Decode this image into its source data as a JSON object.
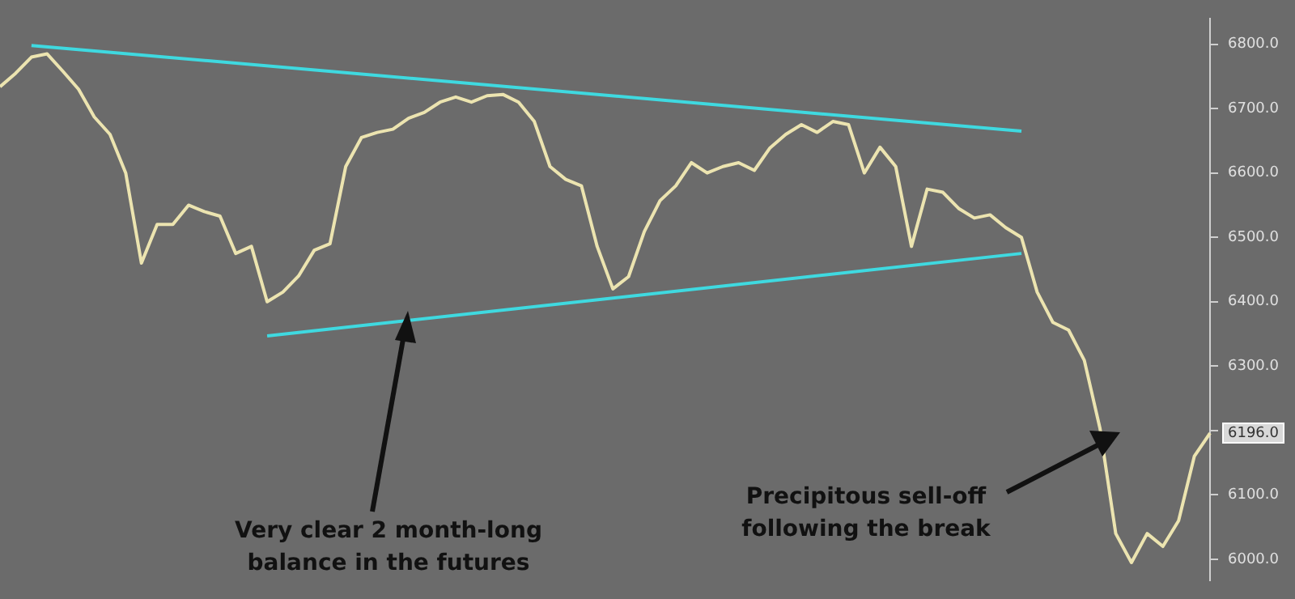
{
  "chart_data": {
    "type": "line",
    "categories": [
      null,
      null,
      null,
      null,
      null,
      null,
      null,
      null,
      null,
      null,
      null,
      null,
      null,
      null,
      null,
      null,
      null,
      null,
      null,
      null,
      null,
      null,
      null,
      null,
      null,
      null,
      null,
      null,
      null,
      null,
      null,
      null,
      null,
      null,
      null,
      null,
      null,
      null,
      null,
      null,
      null,
      null,
      null,
      null,
      null,
      null,
      null,
      null,
      null,
      null,
      null,
      null,
      null,
      null,
      null,
      null,
      null,
      null,
      null,
      null,
      null,
      null,
      null,
      null,
      null,
      null,
      null,
      null,
      null,
      null,
      null,
      null,
      null,
      null,
      null,
      null,
      null,
      null
    ],
    "series": [
      {
        "color": "#ece4b0",
        "values": [
          6734,
          6755,
          6780,
          6785,
          6758,
          6730,
          6687,
          6660,
          6600,
          6460,
          6520,
          6520,
          6550,
          6540,
          6533,
          6475,
          6486,
          6400,
          6415,
          6440,
          6480,
          6490,
          6610,
          6655,
          6663,
          6668,
          6685,
          6694,
          6710,
          6718,
          6710,
          6720,
          6722,
          6710,
          6680,
          6610,
          6590,
          6580,
          6486,
          6420,
          6439,
          6509,
          6557,
          6580,
          6616,
          6600,
          6610,
          6616,
          6604,
          6639,
          6660,
          6675,
          6663,
          6680,
          6675,
          6600,
          6640,
          6610,
          6486,
          6575,
          6570,
          6545,
          6530,
          6535,
          6515,
          6500,
          6415,
          6368,
          6356,
          6309,
          6203,
          6040,
          5995,
          6040,
          6020,
          6060,
          6160,
          6196
        ]
      },
      {
        "color": "#3fd9e0",
        "values": [
          null,
          null,
          6798,
          null,
          null,
          null,
          null,
          null,
          null,
          null,
          null,
          null,
          null,
          null,
          null,
          null,
          null,
          null,
          null,
          null,
          null,
          null,
          null,
          null,
          null,
          null,
          null,
          null,
          null,
          null,
          null,
          null,
          null,
          null,
          null,
          null,
          null,
          null,
          null,
          null,
          null,
          null,
          null,
          null,
          null,
          null,
          null,
          null,
          null,
          null,
          null,
          null,
          null,
          null,
          null,
          null,
          null,
          null,
          null,
          null,
          null,
          null,
          null,
          null,
          null,
          6665,
          null,
          null,
          null,
          null,
          null,
          null,
          null,
          null,
          null,
          null,
          null,
          null
        ]
      },
      {
        "color": "#3fd9e0",
        "values": [
          null,
          null,
          null,
          null,
          null,
          null,
          null,
          null,
          null,
          null,
          null,
          null,
          null,
          null,
          null,
          null,
          null,
          6347,
          null,
          null,
          null,
          null,
          null,
          null,
          null,
          null,
          null,
          null,
          null,
          null,
          null,
          null,
          null,
          null,
          null,
          null,
          null,
          null,
          null,
          null,
          null,
          null,
          null,
          null,
          null,
          null,
          null,
          null,
          null,
          null,
          null,
          null,
          null,
          null,
          null,
          null,
          null,
          null,
          null,
          null,
          null,
          null,
          null,
          null,
          null,
          6475,
          null,
          null,
          null,
          null,
          null,
          null,
          null,
          null,
          null,
          null,
          null,
          null
        ]
      }
    ],
    "ylim": [
      5967,
      6840
    ],
    "yticks": [
      {
        "value": 6000,
        "label": "6000.0"
      },
      {
        "value": 6100,
        "label": "6100.0"
      },
      {
        "value": 6200,
        "label": null
      },
      {
        "value": 6300,
        "label": "6300.0"
      },
      {
        "value": 6400,
        "label": "6400.0"
      },
      {
        "value": 6500,
        "label": "6500.0"
      },
      {
        "value": 6600,
        "label": "6600.0"
      },
      {
        "value": 6700,
        "label": "6700.0"
      },
      {
        "value": 6800,
        "label": "6800.0"
      }
    ],
    "annotations": [
      "Very clear 2 month-long balance in the futures",
      "Precipitous sell-off following the break",
      "6196.0"
    ],
    "tick_labels": "y",
    "grid": false,
    "legend": false,
    "marker": "none"
  }
}
